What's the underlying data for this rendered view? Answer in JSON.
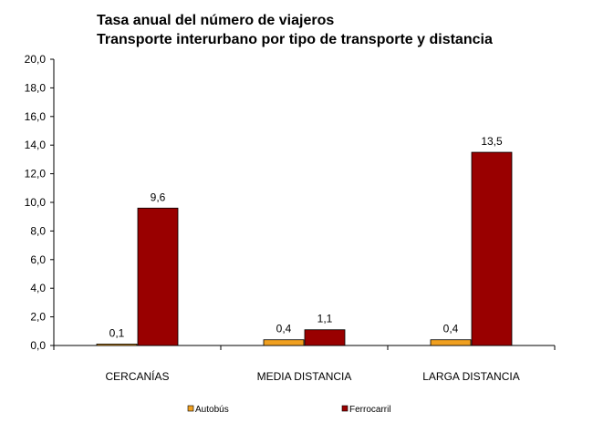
{
  "chart_data": {
    "type": "bar",
    "title": "Tasa anual del número de viajeros",
    "subtitle": "Transporte interurbano por tipo de transporte y distancia",
    "categories": [
      "CERCANÍAS",
      "MEDIA DISTANCIA",
      "LARGA DISTANCIA"
    ],
    "series": [
      {
        "name": "Autobús",
        "color": "#f0a020",
        "values": [
          0.1,
          0.4,
          0.4
        ],
        "labels": [
          "0,1",
          "0,4",
          "0,4"
        ]
      },
      {
        "name": "Ferrocarril",
        "color": "#990000",
        "values": [
          9.6,
          1.1,
          13.5
        ],
        "labels": [
          "9,6",
          "1,1",
          "13,5"
        ]
      }
    ],
    "ylim": [
      0,
      20
    ],
    "ytick_step": 2,
    "yticks": [
      "0,0",
      "2,0",
      "4,0",
      "6,0",
      "8,0",
      "10,0",
      "12,0",
      "14,0",
      "16,0",
      "18,0",
      "20,0"
    ],
    "xlabel": "",
    "ylabel": "",
    "grid": false,
    "legend": "bottom"
  }
}
